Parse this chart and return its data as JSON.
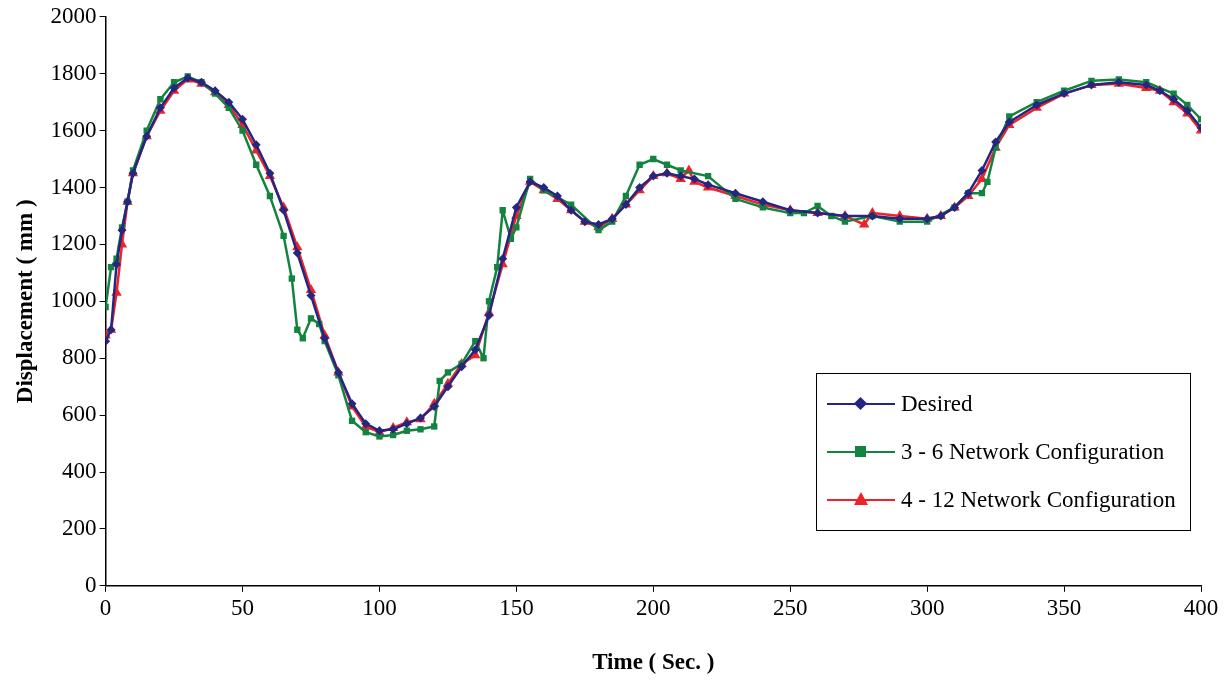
{
  "chart_data": {
    "type": "line",
    "xlabel": "Time ( Sec. )",
    "ylabel": "Displacement ( mm )",
    "xlim": [
      0,
      400
    ],
    "xticks": [
      0,
      50,
      100,
      150,
      200,
      250,
      300,
      350,
      400
    ],
    "ylim": [
      0,
      2000
    ],
    "yticks": [
      0,
      200,
      400,
      600,
      800,
      1000,
      1200,
      1400,
      1600,
      1800,
      2000
    ],
    "grid": false,
    "legend": "bottom right",
    "line_style": "solid",
    "series": [
      {
        "name": "Desired",
        "color": "#262680",
        "marker": "diamond",
        "x": [
          0,
          2,
          4,
          6,
          8,
          10,
          15,
          20,
          25,
          30,
          35,
          40,
          45,
          50,
          55,
          60,
          65,
          70,
          75,
          80,
          85,
          90,
          95,
          100,
          105,
          110,
          115,
          120,
          125,
          130,
          135,
          140,
          145,
          150,
          155,
          160,
          165,
          170,
          175,
          180,
          185,
          190,
          195,
          200,
          205,
          210,
          215,
          220,
          230,
          240,
          250,
          260,
          270,
          280,
          290,
          300,
          305,
          310,
          315,
          320,
          325,
          330,
          340,
          350,
          360,
          370,
          380,
          385,
          390,
          395,
          400
        ],
        "values": [
          860,
          900,
          1130,
          1250,
          1350,
          1450,
          1580,
          1680,
          1750,
          1785,
          1770,
          1740,
          1700,
          1640,
          1550,
          1450,
          1320,
          1170,
          1020,
          870,
          750,
          640,
          570,
          545,
          550,
          570,
          590,
          630,
          700,
          770,
          830,
          950,
          1150,
          1330,
          1420,
          1400,
          1370,
          1320,
          1280,
          1270,
          1290,
          1340,
          1400,
          1440,
          1450,
          1440,
          1430,
          1410,
          1380,
          1350,
          1320,
          1310,
          1300,
          1300,
          1290,
          1290,
          1300,
          1330,
          1380,
          1460,
          1560,
          1630,
          1690,
          1730,
          1760,
          1770,
          1760,
          1740,
          1710,
          1670,
          1610
        ]
      },
      {
        "name": "3 - 6 Network Configuration",
        "color": "#138440",
        "marker": "square",
        "x": [
          0,
          2,
          4,
          6,
          8,
          10,
          15,
          20,
          25,
          30,
          35,
          40,
          45,
          50,
          55,
          60,
          65,
          68,
          70,
          72,
          75,
          78,
          80,
          85,
          90,
          95,
          100,
          105,
          110,
          115,
          120,
          122,
          125,
          130,
          135,
          138,
          140,
          143,
          145,
          148,
          150,
          155,
          160,
          170,
          180,
          185,
          190,
          195,
          200,
          205,
          210,
          220,
          230,
          240,
          250,
          255,
          260,
          265,
          270,
          280,
          290,
          300,
          310,
          315,
          320,
          322,
          325,
          330,
          340,
          350,
          360,
          370,
          380,
          390,
          395,
          400
        ],
        "values": [
          980,
          1120,
          1150,
          1260,
          1350,
          1460,
          1600,
          1710,
          1770,
          1790,
          1770,
          1730,
          1680,
          1600,
          1480,
          1370,
          1230,
          1080,
          900,
          870,
          940,
          920,
          860,
          740,
          580,
          540,
          525,
          530,
          545,
          550,
          560,
          720,
          750,
          780,
          860,
          800,
          1000,
          1120,
          1320,
          1220,
          1260,
          1430,
          1390,
          1340,
          1250,
          1280,
          1370,
          1480,
          1500,
          1480,
          1460,
          1440,
          1360,
          1330,
          1310,
          1310,
          1335,
          1300,
          1280,
          1300,
          1280,
          1280,
          1330,
          1380,
          1380,
          1420,
          1540,
          1650,
          1700,
          1740,
          1775,
          1780,
          1770,
          1730,
          1690,
          1640
        ]
      },
      {
        "name": "4 - 12 Network Configuration",
        "color": "#ee2229",
        "marker": "triangle",
        "x": [
          0,
          2,
          4,
          6,
          8,
          10,
          15,
          20,
          25,
          30,
          35,
          40,
          45,
          50,
          55,
          60,
          65,
          70,
          75,
          80,
          85,
          90,
          95,
          100,
          105,
          110,
          115,
          120,
          125,
          130,
          135,
          140,
          145,
          150,
          155,
          160,
          165,
          170,
          175,
          180,
          185,
          190,
          195,
          200,
          205,
          210,
          213,
          215,
          220,
          230,
          240,
          250,
          260,
          270,
          277,
          280,
          290,
          300,
          305,
          310,
          315,
          320,
          325,
          330,
          340,
          350,
          360,
          370,
          380,
          385,
          390,
          395,
          400
        ],
        "values": [
          880,
          900,
          1030,
          1200,
          1350,
          1450,
          1580,
          1670,
          1740,
          1780,
          1765,
          1735,
          1690,
          1620,
          1530,
          1440,
          1330,
          1190,
          1040,
          880,
          750,
          630,
          560,
          540,
          555,
          575,
          585,
          640,
          710,
          780,
          810,
          960,
          1130,
          1300,
          1420,
          1390,
          1360,
          1320,
          1280,
          1260,
          1290,
          1340,
          1390,
          1440,
          1450,
          1430,
          1460,
          1420,
          1400,
          1370,
          1340,
          1320,
          1310,
          1300,
          1270,
          1310,
          1300,
          1290,
          1300,
          1330,
          1370,
          1430,
          1540,
          1620,
          1680,
          1730,
          1760,
          1765,
          1750,
          1740,
          1700,
          1660,
          1600
        ]
      }
    ]
  }
}
